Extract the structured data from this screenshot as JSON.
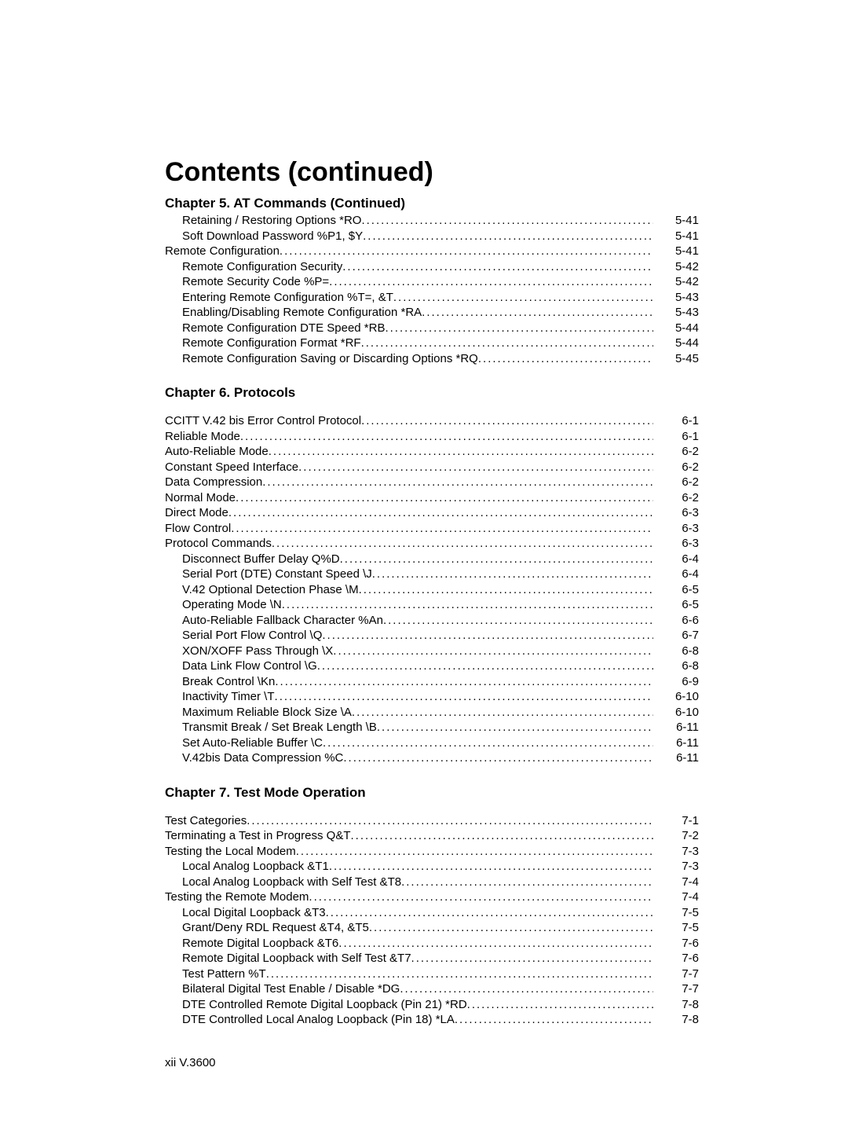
{
  "title": "Contents (continued)",
  "footer": {
    "left": "xii",
    "center": "V.3600"
  },
  "sections": [
    {
      "heading": "Chapter 5. AT Commands (Continued)",
      "gap": false,
      "rows": [
        {
          "indent": 1,
          "label": "Retaining / Restoring Options   *RO ",
          "page": "5-41"
        },
        {
          "indent": 1,
          "label": "Soft Download Password   %P1, $Y ",
          "page": "5-41"
        },
        {
          "indent": 0,
          "label": "Remote Configuration ",
          "page": "5-41"
        },
        {
          "indent": 1,
          "label": "Remote Configuration Security ",
          "page": "5-42"
        },
        {
          "indent": 1,
          "label": "Remote Security Code   %P= ",
          "page": "5-42"
        },
        {
          "indent": 1,
          "label": "Entering Remote Configuration   %T=, &T ",
          "page": "5-43"
        },
        {
          "indent": 1,
          "label": "Enabling/Disabling Remote Configuration   *RA ",
          "page": "5-43"
        },
        {
          "indent": 1,
          "label": "Remote Configuration DTE Speed   *RB",
          "page": "5-44"
        },
        {
          "indent": 1,
          "label": "Remote Configuration Format   *RF ",
          "page": "5-44"
        },
        {
          "indent": 1,
          "label": "Remote Configuration Saving or Discarding Options   *RQ ",
          "page": "5-45"
        }
      ]
    },
    {
      "heading": "Chapter 6. Protocols",
      "gap": true,
      "rows": [
        {
          "indent": 0,
          "label": "CCITT V.42 bis Error Control Protocol ",
          "page": "6-1"
        },
        {
          "indent": 0,
          "label": "Reliable Mode ",
          "page": "6-1"
        },
        {
          "indent": 0,
          "label": "Auto-Reliable Mode ",
          "page": "6-2"
        },
        {
          "indent": 0,
          "label": "Constant Speed Interface",
          "page": "6-2"
        },
        {
          "indent": 0,
          "label": "Data Compression ",
          "page": "6-2"
        },
        {
          "indent": 0,
          "label": "Normal Mode ",
          "page": "6-2"
        },
        {
          "indent": 0,
          "label": "Direct Mode ",
          "page": "6-3"
        },
        {
          "indent": 0,
          "label": "Flow Control ",
          "page": "6-3"
        },
        {
          "indent": 0,
          "label": "Protocol Commands ",
          "page": "6-3"
        },
        {
          "indent": 1,
          "label": "Disconnect Buffer Delay   Q%D ",
          "page": "6-4"
        },
        {
          "indent": 1,
          "label": "Serial Port (DTE) Constant Speed   \\J ",
          "page": "6-4"
        },
        {
          "indent": 1,
          "label": "V.42 Optional Detection Phase   \\M ",
          "page": "6-5"
        },
        {
          "indent": 1,
          "label": "Operating Mode   \\N ",
          "page": "6-5"
        },
        {
          "indent": 1,
          "label": "Auto-Reliable Fallback Character   %An ",
          "page": "6-6"
        },
        {
          "indent": 1,
          "label": "Serial Port Flow Control   \\Q ",
          "page": "6-7"
        },
        {
          "indent": 1,
          "label": "XON/XOFF Pass Through   \\X",
          "page": "6-8"
        },
        {
          "indent": 1,
          "label": "Data Link Flow Control   \\G ",
          "page": "6-8"
        },
        {
          "indent": 1,
          "label": "Break Control   \\Kn ",
          "page": "6-9"
        },
        {
          "indent": 1,
          "label": "Inactivity Timer   \\T ",
          "page": "6-10"
        },
        {
          "indent": 1,
          "label": "Maximum Reliable Block Size   \\A ",
          "page": "6-10"
        },
        {
          "indent": 1,
          "label": "Transmit Break / Set Break Length   \\B ",
          "page": "6-11"
        },
        {
          "indent": 1,
          "label": "Set Auto-Reliable Buffer   \\C ",
          "page": "6-11"
        },
        {
          "indent": 1,
          "label": "V.42bis Data Compression   %C ",
          "page": "6-11"
        }
      ]
    },
    {
      "heading": "Chapter 7. Test Mode Operation",
      "gap": true,
      "rows": [
        {
          "indent": 0,
          "label": "Test Categories ",
          "page": "7-1"
        },
        {
          "indent": 0,
          "label": "Terminating a Test in Progress   Q&T ",
          "page": "7-2"
        },
        {
          "indent": 0,
          "label": "Testing the Local Modem ",
          "page": "7-3"
        },
        {
          "indent": 1,
          "label": "Local Analog Loopback   &T1 ",
          "page": "7-3"
        },
        {
          "indent": 1,
          "label": "Local Analog Loopback with Self Test   &T8 ",
          "page": "7-4"
        },
        {
          "indent": 0,
          "label": "Testing the Remote Modem ",
          "page": "7-4"
        },
        {
          "indent": 1,
          "label": "Local Digital Loopback   &T3 ",
          "page": "7-5"
        },
        {
          "indent": 1,
          "label": "Grant/Deny RDL Request   &T4, &T5 ",
          "page": "7-5"
        },
        {
          "indent": 1,
          "label": "Remote Digital Loopback   &T6 ",
          "page": "7-6"
        },
        {
          "indent": 1,
          "label": "Remote Digital Loopback with Self Test   &T7 ",
          "page": "7-6"
        },
        {
          "indent": 1,
          "label": "Test Pattern   %T ",
          "page": "7-7"
        },
        {
          "indent": 1,
          "label": "Bilateral Digital Test Enable / Disable   *DG",
          "page": "7-7"
        },
        {
          "indent": 1,
          "label": "DTE Controlled Remote Digital Loopback (Pin 21)   *RD ",
          "page": "7-8"
        },
        {
          "indent": 1,
          "label": "DTE Controlled Local Analog Loopback (Pin 18) *LA ",
          "page": "7-8"
        }
      ]
    }
  ]
}
